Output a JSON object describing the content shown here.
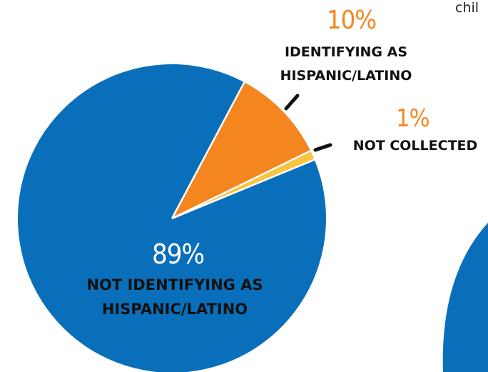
{
  "page": {
    "corner_text": "chil"
  },
  "colors": {
    "primary": "#0a6fba",
    "secondary": "#f5861f",
    "tertiary": "#f9c440",
    "text": "#111111",
    "background": "#ffffff"
  },
  "chart_data": {
    "type": "pie",
    "slices": [
      {
        "value_label": "89%",
        "label_line1": "NOT IDENTIFYING AS",
        "label_line2": "HISPANIC/LATINO",
        "value": 89,
        "color": "#0a6fba",
        "text_color": "#111111"
      },
      {
        "value_label": "10%",
        "label_line1": "IDENTIFYING AS",
        "label_line2": "HISPANIC/LATINO",
        "value": 10,
        "color": "#f5861f",
        "text_color": "#f5861f"
      },
      {
        "value_label": "1%",
        "label_line1": "NOT COLLECTED",
        "label_line2": "",
        "value": 1,
        "color": "#f9c440",
        "text_color": "#f5861f"
      }
    ]
  }
}
